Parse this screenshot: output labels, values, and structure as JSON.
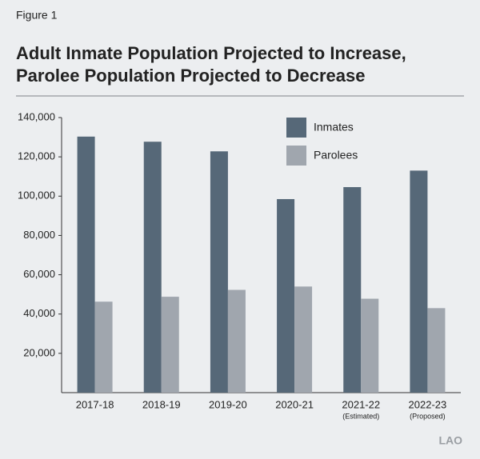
{
  "chart_data": {
    "type": "bar",
    "figure_label": "Figure 1",
    "title": [
      "Adult Inmate Population Projected to Increase,",
      "Parolee Population Projected to Decrease"
    ],
    "categories": [
      "2017-18",
      "2018-19",
      "2019-20",
      "2020-21",
      "2021-22",
      "2022-23"
    ],
    "category_sublabels": [
      null,
      null,
      null,
      null,
      "(Estimated)",
      "(Proposed)"
    ],
    "series": [
      {
        "name": "Inmates",
        "color": "#566878",
        "values": [
          130300,
          127700,
          122800,
          98500,
          104600,
          113000
        ]
      },
      {
        "name": "Parolees",
        "color": "#a0a6ae",
        "values": [
          46300,
          48800,
          52300,
          54000,
          47800,
          43000
        ]
      }
    ],
    "ylim": [
      0,
      140000
    ],
    "yticks": [
      {
        "value": 20000,
        "label": "20,000"
      },
      {
        "value": 40000,
        "label": "40,000"
      },
      {
        "value": 60000,
        "label": "60,000"
      },
      {
        "value": 80000,
        "label": "80,000"
      },
      {
        "value": 100000,
        "label": "100,000"
      },
      {
        "value": 120000,
        "label": "120,000"
      },
      {
        "value": 140000,
        "label": "140,000"
      }
    ],
    "grid": false,
    "legend": "top-right",
    "logo": "LAO"
  }
}
